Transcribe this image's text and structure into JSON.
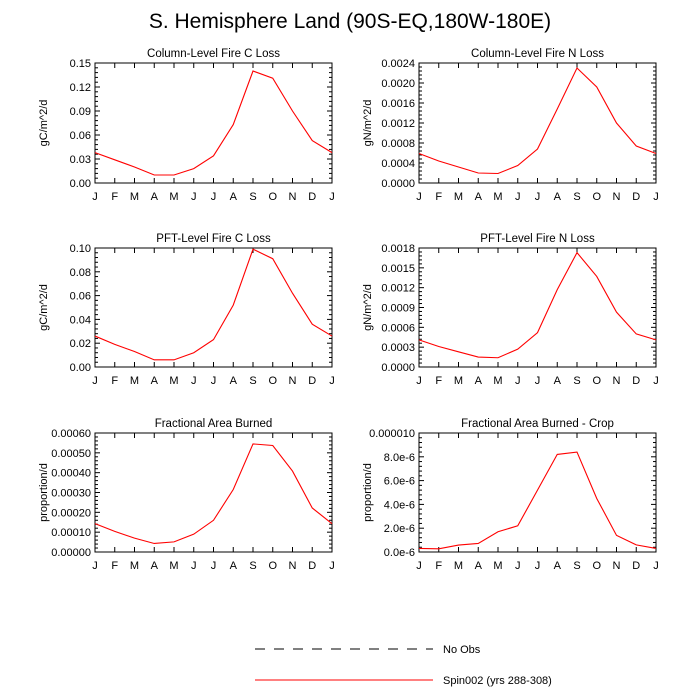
{
  "title": "S. Hemisphere Land (90S-EQ,180W-180E)",
  "colors": {
    "model": "#ff0000",
    "obs": "#000000",
    "axis": "#000000"
  },
  "legend": {
    "entries": [
      {
        "label": "No Obs",
        "style": "dashed",
        "color": "#000000"
      },
      {
        "label": "Spin002 (yrs 288-308)",
        "style": "solid",
        "color": "#ff0000"
      }
    ]
  },
  "chart_data": [
    {
      "type": "line",
      "title": "Column-Level Fire C Loss",
      "ylabel": "gC/m^2/d",
      "categories": [
        "J",
        "F",
        "M",
        "A",
        "M",
        "J",
        "J",
        "A",
        "S",
        "O",
        "N",
        "D",
        "J"
      ],
      "ylim": [
        0,
        0.15
      ],
      "yticks": [
        "0.00",
        "0.03",
        "0.06",
        "0.09",
        "0.12",
        "0.15"
      ],
      "series": [
        {
          "name": "Spin002 (yrs 288-308)",
          "values": [
            0.038,
            0.029,
            0.02,
            0.01,
            0.01,
            0.018,
            0.034,
            0.073,
            0.14,
            0.131,
            0.09,
            0.053,
            0.038
          ]
        }
      ]
    },
    {
      "type": "line",
      "title": "Column-Level Fire N Loss",
      "ylabel": "gN/m^2/d",
      "categories": [
        "J",
        "F",
        "M",
        "A",
        "M",
        "J",
        "J",
        "A",
        "S",
        "O",
        "N",
        "D",
        "J"
      ],
      "ylim": [
        0,
        0.0024
      ],
      "yticks": [
        "0.0000",
        "0.0004",
        "0.0008",
        "0.0012",
        "0.0016",
        "0.0020",
        "0.0024"
      ],
      "series": [
        {
          "name": "Spin002 (yrs 288-308)",
          "values": [
            0.00059,
            0.00044,
            0.00032,
            0.0002,
            0.00019,
            0.00035,
            0.00068,
            0.00148,
            0.0023,
            0.00192,
            0.0012,
            0.00074,
            0.00059
          ]
        }
      ]
    },
    {
      "type": "line",
      "title": "PFT-Level Fire C Loss",
      "ylabel": "gC/m^2/d",
      "categories": [
        "J",
        "F",
        "M",
        "A",
        "M",
        "J",
        "J",
        "A",
        "S",
        "O",
        "N",
        "D",
        "J"
      ],
      "ylim": [
        0,
        0.1
      ],
      "yticks": [
        "0.00",
        "0.02",
        "0.04",
        "0.06",
        "0.08",
        "0.10"
      ],
      "series": [
        {
          "name": "Spin002 (yrs 288-308)",
          "values": [
            0.026,
            0.019,
            0.013,
            0.006,
            0.006,
            0.012,
            0.023,
            0.052,
            0.099,
            0.091,
            0.062,
            0.036,
            0.026
          ]
        }
      ]
    },
    {
      "type": "line",
      "title": "PFT-Level Fire N Loss",
      "ylabel": "gN/m^2/d",
      "categories": [
        "J",
        "F",
        "M",
        "A",
        "M",
        "J",
        "J",
        "A",
        "S",
        "O",
        "N",
        "D",
        "J"
      ],
      "ylim": [
        0,
        0.0018
      ],
      "yticks": [
        "0.0000",
        "0.0003",
        "0.0006",
        "0.0009",
        "0.0012",
        "0.0015",
        "0.0018"
      ],
      "series": [
        {
          "name": "Spin002 (yrs 288-308)",
          "values": [
            0.00041,
            0.00031,
            0.00023,
            0.00015,
            0.00014,
            0.00027,
            0.00052,
            0.00117,
            0.00173,
            0.00137,
            0.00083,
            0.0005,
            0.00041
          ]
        }
      ]
    },
    {
      "type": "line",
      "title": "Fractional Area Burned",
      "ylabel": "proportion/d",
      "categories": [
        "J",
        "F",
        "M",
        "A",
        "M",
        "J",
        "J",
        "A",
        "S",
        "O",
        "N",
        "D",
        "J"
      ],
      "ylim": [
        0,
        0.0006
      ],
      "yticks": [
        "0.00000",
        "0.00010",
        "0.00020",
        "0.00030",
        "0.00040",
        "0.00050",
        "0.00060"
      ],
      "series": [
        {
          "name": "Spin002 (yrs 288-308)",
          "values": [
            0.000143,
            0.000104,
            7e-05,
            4.3e-05,
            5.1e-05,
            9e-05,
            0.00016,
            0.000315,
            0.000545,
            0.000537,
            0.000408,
            0.000222,
            0.000143
          ]
        }
      ]
    },
    {
      "type": "line",
      "title": "Fractional Area Burned - Crop",
      "ylabel": "proportion/d",
      "categories": [
        "J",
        "F",
        "M",
        "A",
        "M",
        "J",
        "J",
        "A",
        "S",
        "O",
        "N",
        "D",
        "J"
      ],
      "ylim": [
        0,
        1e-05
      ],
      "yticks": [
        "0.0e-6",
        "2.0e-6",
        "4.0e-6",
        "6.0e-6",
        "8.0e-6",
        "0.000010"
      ],
      "series": [
        {
          "name": "Spin002 (yrs 288-308)",
          "values": [
            3e-07,
            2.7e-07,
            5.8e-07,
            7.2e-07,
            1.7e-06,
            2.2e-06,
            5.2e-06,
            8.2e-06,
            8.4e-06,
            4.5e-06,
            1.4e-06,
            6e-07,
            3e-07
          ]
        }
      ]
    }
  ]
}
